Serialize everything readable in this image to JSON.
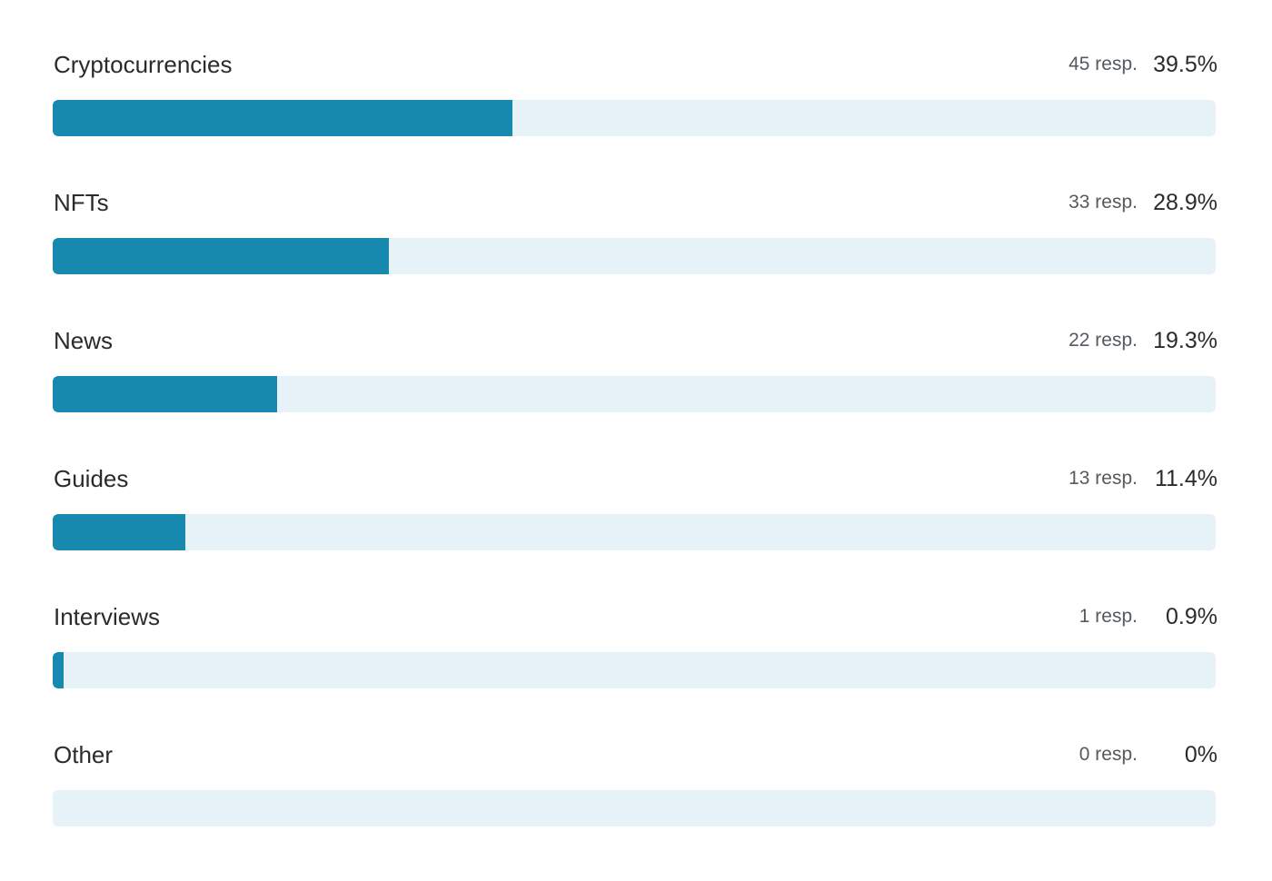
{
  "chart_data": {
    "type": "bar",
    "orientation": "horizontal",
    "categories": [
      "Cryptocurrencies",
      "NFTs",
      "News",
      "Guides",
      "Interviews",
      "Other"
    ],
    "responses": [
      45,
      33,
      22,
      13,
      1,
      0
    ],
    "resp_labels": [
      "45 resp.",
      "33 resp.",
      "22 resp.",
      "13 resp.",
      "1 resp.",
      "0 resp."
    ],
    "values": [
      39.5,
      28.9,
      19.3,
      11.4,
      0.9,
      0
    ],
    "value_labels": [
      "39.5%",
      "28.9%",
      "19.3%",
      "11.4%",
      "0.9%",
      "0%"
    ],
    "xlim": [
      0,
      100
    ],
    "grid": false,
    "colors": {
      "fill": "#1789ae",
      "track": "#e6f2f7"
    }
  }
}
